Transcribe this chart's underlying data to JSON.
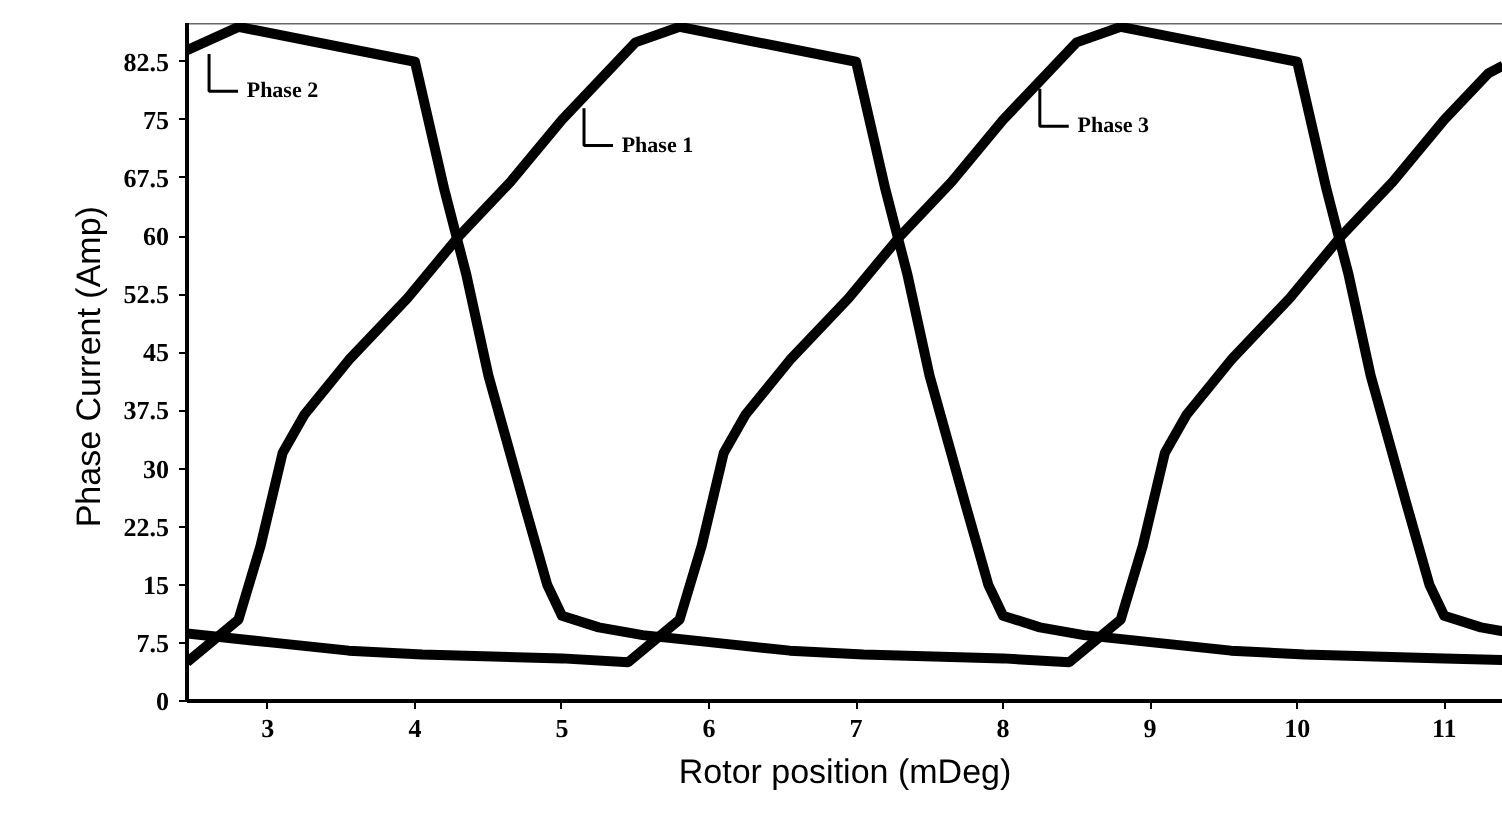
{
  "chart_data": {
    "type": "line",
    "xlabel": "Rotor position (mDeg)",
    "ylabel": "Phase Current  (Amp)",
    "xlim": [
      2.45,
      11.4
    ],
    "ylim": [
      0,
      87.5
    ],
    "xticks": [
      3,
      4,
      5,
      6,
      7,
      8,
      9,
      10,
      11
    ],
    "yticks": [
      0,
      7.5,
      15,
      22.5,
      30,
      37.5,
      45,
      52.5,
      60,
      67.5,
      75,
      82.5
    ],
    "grid": false,
    "marker": "none",
    "line_style": "solid",
    "series": [
      {
        "color": "#000000",
        "x": [
          2.45,
          2.8,
          2.95,
          3.1,
          3.25,
          3.55,
          3.95,
          4.3,
          4.65,
          5.0,
          5.3,
          5.5,
          5.8,
          7.0,
          7.2,
          7.35,
          7.5,
          7.75,
          7.9,
          8.0,
          8.25,
          8.55,
          9.05,
          9.55,
          10.05,
          11.0,
          11.4
        ],
        "values": [
          5,
          10.5,
          20,
          32,
          37,
          44,
          52,
          60,
          67,
          75,
          81,
          85,
          87,
          82.5,
          66,
          55,
          42,
          25,
          15,
          11,
          9.5,
          8.5,
          7.5,
          6.5,
          6,
          5.5,
          5.3
        ]
      },
      {
        "color": "#000000",
        "x": [
          2.45,
          2.8,
          4.0,
          4.2,
          4.35,
          4.5,
          4.75,
          4.9,
          5.0,
          5.25,
          5.55,
          6.05,
          6.55,
          7.05,
          8.0,
          8.45,
          8.8,
          8.95,
          9.1,
          9.25,
          9.55,
          9.95,
          10.3,
          10.65,
          11.0,
          11.3,
          11.4
        ],
        "values": [
          84,
          87,
          82.5,
          66,
          55,
          42,
          25,
          15,
          11,
          9.5,
          8.5,
          7.5,
          6.5,
          6,
          5.5,
          5,
          10.5,
          20,
          32,
          37,
          44,
          52,
          60,
          67,
          75,
          81,
          82
        ]
      },
      {
        "color": "#000000",
        "x": [
          2.45,
          3.05,
          3.55,
          4.05,
          5.0,
          5.45,
          5.8,
          5.95,
          6.1,
          6.25,
          6.55,
          6.95,
          7.3,
          7.65,
          8.0,
          8.3,
          8.5,
          8.8,
          10.0,
          10.2,
          10.35,
          10.5,
          10.75,
          10.9,
          11.0,
          11.25,
          11.4
        ],
        "values": [
          8.7,
          7.5,
          6.5,
          6,
          5.5,
          5,
          10.5,
          20,
          32,
          37,
          44,
          52,
          60,
          67,
          75,
          81,
          85,
          87,
          82.5,
          66,
          55,
          42,
          25,
          15,
          11,
          9.5,
          9
        ]
      }
    ],
    "annotations": [
      {
        "text": "Phase 2",
        "x": 2.6,
        "y": 83.5
      },
      {
        "text": "Phase 1",
        "x": 5.15,
        "y": 76.5
      },
      {
        "text": "Phase 3",
        "x": 8.25,
        "y": 79
      }
    ]
  }
}
